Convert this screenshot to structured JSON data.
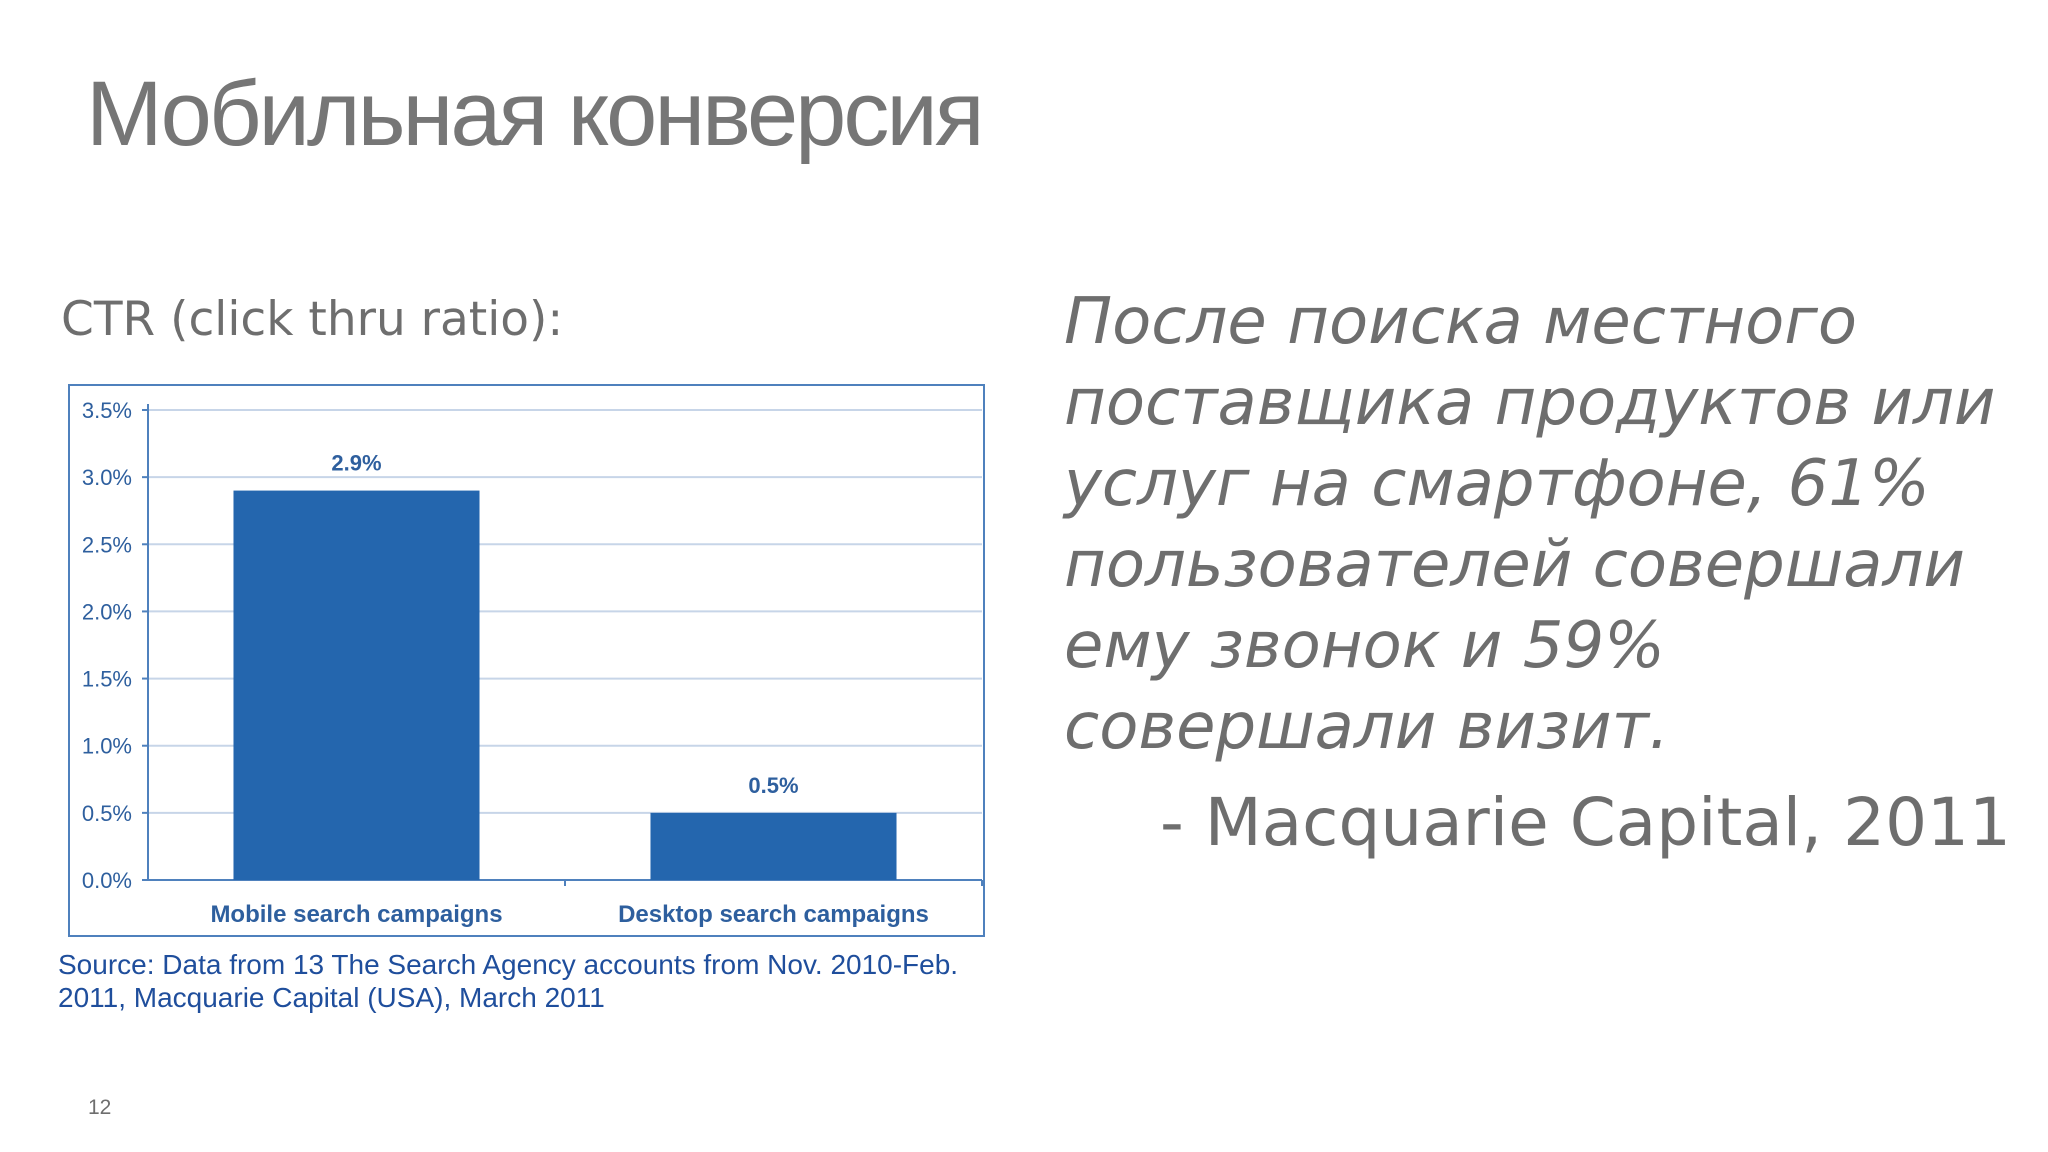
{
  "slide": {
    "title": "Мобильная конверсия",
    "subtitle": "CTR (click thru ratio):",
    "page_number": "12"
  },
  "quote": {
    "text": "После поиска местного поставщика продуктов или услуг на смартфоне, 61% пользователей совершали ему звонок и 59% совершали визит.",
    "attribution": "- Macquarie Capital, 2011"
  },
  "source": {
    "text": "Source: Data from 13 The Search Agency accounts from Nov. 2010-Feb. 2011, Macquarie Capital (USA), March 2011"
  },
  "chart_data": {
    "type": "bar",
    "categories": [
      "Mobile search campaigns",
      "Desktop search campaigns"
    ],
    "values": [
      2.9,
      0.5
    ],
    "value_labels": [
      "2.9%",
      "0.5%"
    ],
    "ylim": [
      0,
      3.5
    ],
    "yticks": [
      0,
      0.5,
      1.0,
      1.5,
      2.0,
      2.5,
      3.0,
      3.5
    ],
    "ytick_labels": [
      "0.0%",
      "0.5%",
      "1.0%",
      "1.5%",
      "2.0%",
      "2.5%",
      "3.0%",
      "3.5%"
    ],
    "grid": true,
    "legend": "none",
    "title": "",
    "xlabel": "",
    "ylabel": "",
    "colors": {
      "bar": "#2466ae",
      "grid": "#c7d5e8",
      "axis": "#4f81bd",
      "text": "#2e5f9e"
    }
  }
}
